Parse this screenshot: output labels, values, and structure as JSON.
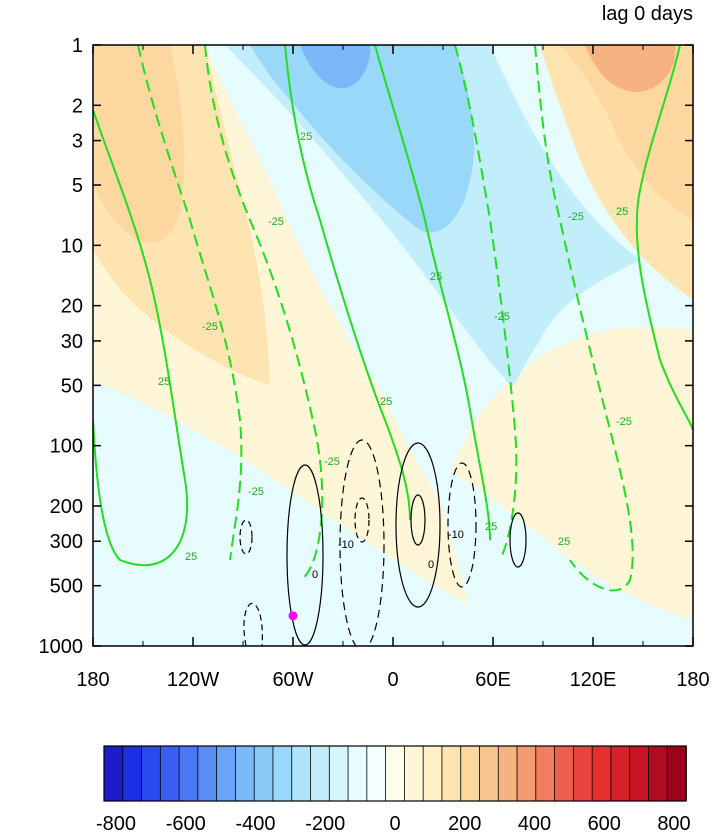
{
  "chart_data": {
    "type": "heatmap",
    "title": "lag 0 days",
    "xlabel": "",
    "ylabel": "",
    "x_ticks": [
      {
        "value": -180,
        "label": "180"
      },
      {
        "value": -120,
        "label": "120W"
      },
      {
        "value": -60,
        "label": "60W"
      },
      {
        "value": 0,
        "label": "0"
      },
      {
        "value": 60,
        "label": "60E"
      },
      {
        "value": 120,
        "label": "120E"
      },
      {
        "value": 180,
        "label": "180"
      }
    ],
    "xlim": [
      -180,
      180
    ],
    "y_ticks": [
      1,
      2,
      3,
      5,
      10,
      20,
      30,
      50,
      100,
      200,
      300,
      500,
      1000
    ],
    "y_tick_labels": [
      "1",
      "2",
      "3",
      "5",
      "10",
      "20",
      "30",
      "50",
      "100",
      "200",
      "300",
      "500",
      "1000"
    ],
    "ylim": [
      1000,
      1
    ],
    "y_scale": "log",
    "y_inverted": true,
    "grid": false,
    "colorbar": {
      "orientation": "horizontal",
      "placement": "bottom",
      "levels": [
        -850,
        -800,
        -750,
        -700,
        -650,
        -600,
        -550,
        -500,
        -450,
        -400,
        -350,
        -300,
        -250,
        -200,
        -150,
        -100,
        -50,
        0,
        50,
        100,
        150,
        200,
        250,
        300,
        350,
        400,
        450,
        500,
        550,
        600,
        650,
        700,
        750,
        800,
        850
      ],
      "tick_values": [
        -800,
        -600,
        -400,
        -200,
        0,
        200,
        400,
        600,
        800
      ],
      "tick_labels": [
        "-800",
        "-600",
        "-400",
        "-200",
        "0",
        "200",
        "400",
        "600",
        "800"
      ],
      "colors": [
        "#1c1cc8",
        "#1e2ee6",
        "#2a4aee",
        "#3a5ef0",
        "#4a78f2",
        "#5a8ef4",
        "#6aa4f6",
        "#7ab8f8",
        "#8acaf8",
        "#9ad8fa",
        "#aee4fa",
        "#c2eefc",
        "#d6f6fc",
        "#e6fcfe",
        "#f4fefe",
        "#fefcea",
        "#fef6d6",
        "#fef0c4",
        "#fee4b0",
        "#fcd8a0",
        "#f8c690",
        "#f6b280",
        "#f29a70",
        "#f07e60",
        "#ec6050",
        "#e84440",
        "#e43030",
        "#d82028",
        "#c81424",
        "#b00c20",
        "#980418"
      ]
    },
    "shaded_regions": [
      {
        "level": -200,
        "description_value": "negative lobe center 30W-0 upper levels"
      },
      {
        "level": 250,
        "description_value": "positive lobe near 150E upper levels"
      }
    ],
    "contours_green": {
      "series": [
        {
          "value": 25,
          "label": "25",
          "style": "solid"
        },
        {
          "value": -25,
          "label": "-25",
          "style": "dashed"
        }
      ]
    },
    "contours_black": {
      "series": [
        {
          "value": 10,
          "label": "10",
          "style": "solid"
        },
        {
          "value": 0,
          "label": "0",
          "style": "solid"
        },
        {
          "value": -10,
          "label": "-10",
          "style": "dashed"
        }
      ]
    },
    "marker": {
      "x": -60,
      "y": 850,
      "color": "#ff00ff"
    }
  }
}
